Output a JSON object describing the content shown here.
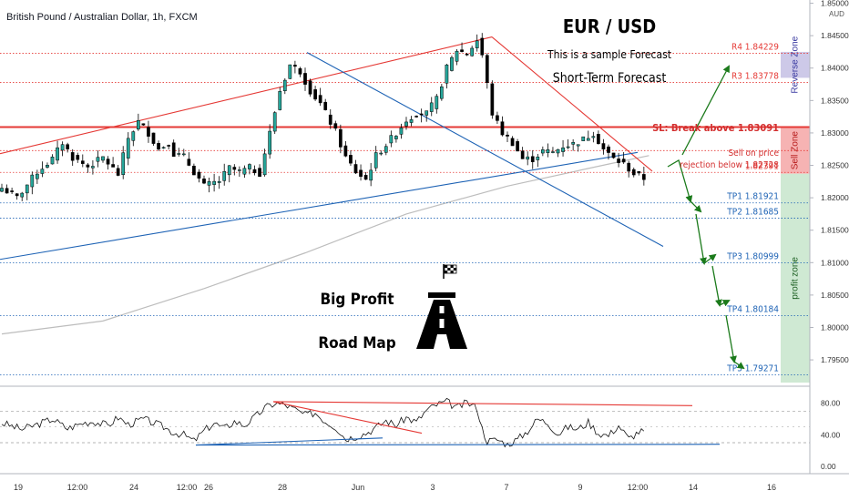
{
  "header": {
    "symbol_text": "British Pound / Australian Dollar, 1h, FXCM",
    "title": "EUR / USD",
    "subtitle": "This is a sample Forecast",
    "forecast_label": "Short-Term Forecast",
    "currency": "AUD"
  },
  "sl_label": "SL: Break above 1.83091",
  "sell_label_1": "Sell on price",
  "sell_label_2": "rejection below 1.82728",
  "road_map_1": "Big Profit",
  "road_map_2": "Road Map",
  "zones": [
    {
      "label": "Reverse Zone",
      "from": 1.8385,
      "to": 1.8425,
      "color": "#cdc9e8",
      "text_color": "#3a3aa0"
    },
    {
      "label": "Sell Zone",
      "from": 1.8237,
      "to": 1.8309,
      "color": "#f6b3b3",
      "text_color": "#b71c1c"
    },
    {
      "label": "profit zone",
      "from": 1.7915,
      "to": 1.8237,
      "color": "#cfe9d3",
      "text_color": "#1b5e20"
    }
  ],
  "levels": [
    {
      "name": "R4",
      "value": 1.84229,
      "label": "R4 1.84229",
      "color": "#e53935",
      "style": "dotted"
    },
    {
      "name": "R3",
      "value": 1.83778,
      "label": "R3 1.83778",
      "color": "#e53935",
      "style": "dotted"
    },
    {
      "name": "SL",
      "value": 1.83091,
      "label": "",
      "color": "#e53935",
      "style": "solid"
    },
    {
      "name": "Sell",
      "value": 1.82728,
      "label": "",
      "color": "#e53935",
      "style": "dotted"
    },
    {
      "name": "Entry",
      "value": 1.82391,
      "label": "1.82391",
      "color": "#e53935",
      "style": "dotted"
    },
    {
      "name": "TP1",
      "value": 1.81921,
      "label": "TP1 1.81921",
      "color": "#1e63b5",
      "style": "dotted"
    },
    {
      "name": "TP2",
      "value": 1.81685,
      "label": "TP2 1.81685",
      "color": "#1e63b5",
      "style": "dotted"
    },
    {
      "name": "TP3",
      "value": 1.80999,
      "label": "TP3 1.80999",
      "color": "#1e63b5",
      "style": "dotted"
    },
    {
      "name": "TP4",
      "value": 1.80184,
      "label": "TP4 1.80184",
      "color": "#1e63b5",
      "style": "dotted"
    },
    {
      "name": "TP5",
      "value": 1.79271,
      "label": "TP5 1.79271",
      "color": "#1e63b5",
      "style": "dotted"
    }
  ],
  "colors": {
    "up": "#26a69a",
    "down": "#000000",
    "trend_red": "#e53935",
    "trend_blue": "#1e63b5",
    "arrow_green": "#1b7a1b",
    "ma": "#bdbdbd"
  },
  "chart_data": {
    "type": "candlestick",
    "y_axis": {
      "min": 1.7915,
      "max": 1.8505,
      "ticks": [
        1.795,
        1.8,
        1.805,
        1.81,
        1.815,
        1.82,
        1.825,
        1.83,
        1.835,
        1.84,
        1.845,
        1.85
      ]
    },
    "x_ticks": [
      "19",
      "12:00",
      "24",
      "12:00",
      "26",
      "28",
      "Jun",
      "3",
      "7",
      "9",
      "12:00",
      "14",
      "16"
    ],
    "close_path": [
      [
        0,
        1.8215
      ],
      [
        3,
        1.82
      ],
      [
        7,
        1.824
      ],
      [
        10,
        1.826
      ],
      [
        12,
        1.8285
      ],
      [
        14,
        1.8262
      ],
      [
        17,
        1.8248
      ],
      [
        20,
        1.8262
      ],
      [
        23,
        1.8236
      ],
      [
        25,
        1.8292
      ],
      [
        27,
        1.8317
      ],
      [
        29,
        1.83
      ],
      [
        31,
        1.8275
      ],
      [
        33,
        1.8285
      ],
      [
        34,
        1.8268
      ],
      [
        36,
        1.8263
      ],
      [
        38,
        1.824
      ],
      [
        40,
        1.8218
      ],
      [
        43,
        1.8226
      ],
      [
        45,
        1.8246
      ],
      [
        47,
        1.824
      ],
      [
        49,
        1.8246
      ],
      [
        51,
        1.8238
      ],
      [
        53,
        1.83
      ],
      [
        55,
        1.8365
      ],
      [
        57,
        1.8405
      ],
      [
        59,
        1.8395
      ],
      [
        61,
        1.8365
      ],
      [
        63,
        1.8345
      ],
      [
        66,
        1.8302
      ],
      [
        68,
        1.8262
      ],
      [
        70,
        1.824
      ],
      [
        72,
        1.8228
      ],
      [
        74,
        1.8265
      ],
      [
        76,
        1.8282
      ],
      [
        78,
        1.83
      ],
      [
        80,
        1.832
      ],
      [
        82,
        1.833
      ],
      [
        84,
        1.833
      ],
      [
        86,
        1.8352
      ],
      [
        88,
        1.84
      ],
      [
        90,
        1.8428
      ],
      [
        92,
        1.8422
      ],
      [
        94,
        1.8443
      ],
      [
        95,
        1.842
      ],
      [
        97,
        1.833
      ],
      [
        99,
        1.83
      ],
      [
        101,
        1.8285
      ],
      [
        103,
        1.826
      ],
      [
        105,
        1.826
      ],
      [
        107,
        1.8272
      ],
      [
        109,
        1.827
      ],
      [
        111,
        1.828
      ],
      [
        113,
        1.8283
      ],
      [
        115,
        1.829
      ],
      [
        117,
        1.83
      ],
      [
        119,
        1.8275
      ],
      [
        121,
        1.826
      ],
      [
        123,
        1.8252
      ],
      [
        125,
        1.8237
      ],
      [
        127,
        1.823
      ]
    ],
    "rsi": {
      "axis_ticks": [
        0,
        40,
        80
      ],
      "bounds": [
        30,
        70
      ],
      "path": [
        [
          0,
          55
        ],
        [
          4,
          47
        ],
        [
          7,
          53
        ],
        [
          10,
          60
        ],
        [
          13,
          48
        ],
        [
          16,
          55
        ],
        [
          18,
          57
        ],
        [
          21,
          52
        ],
        [
          23,
          62
        ],
        [
          25,
          53
        ],
        [
          28,
          60
        ],
        [
          30,
          55
        ],
        [
          32,
          50
        ],
        [
          34,
          43
        ],
        [
          36,
          40
        ],
        [
          38,
          32
        ],
        [
          40,
          45
        ],
        [
          42,
          55
        ],
        [
          44,
          48
        ],
        [
          46,
          57
        ],
        [
          48,
          52
        ],
        [
          50,
          62
        ],
        [
          52,
          74
        ],
        [
          54,
          80
        ],
        [
          56,
          78
        ],
        [
          58,
          72
        ],
        [
          60,
          65
        ],
        [
          62,
          68
        ],
        [
          64,
          57
        ],
        [
          66,
          50
        ],
        [
          68,
          35
        ],
        [
          70,
          38
        ],
        [
          72,
          42
        ],
        [
          74,
          49
        ],
        [
          76,
          58
        ],
        [
          78,
          52
        ],
        [
          80,
          62
        ],
        [
          82,
          56
        ],
        [
          84,
          71
        ],
        [
          86,
          78
        ],
        [
          88,
          82
        ],
        [
          90,
          74
        ],
        [
          92,
          81
        ],
        [
          94,
          74
        ],
        [
          95,
          48
        ],
        [
          96,
          32
        ],
        [
          98,
          34
        ],
        [
          100,
          28
        ],
        [
          102,
          34
        ],
        [
          104,
          45
        ],
        [
          106,
          60
        ],
        [
          108,
          55
        ],
        [
          110,
          41
        ],
        [
          112,
          50
        ],
        [
          114,
          47
        ],
        [
          116,
          56
        ],
        [
          118,
          42
        ],
        [
          120,
          39
        ],
        [
          122,
          52
        ],
        [
          124,
          35
        ],
        [
          126,
          44
        ]
      ]
    }
  }
}
